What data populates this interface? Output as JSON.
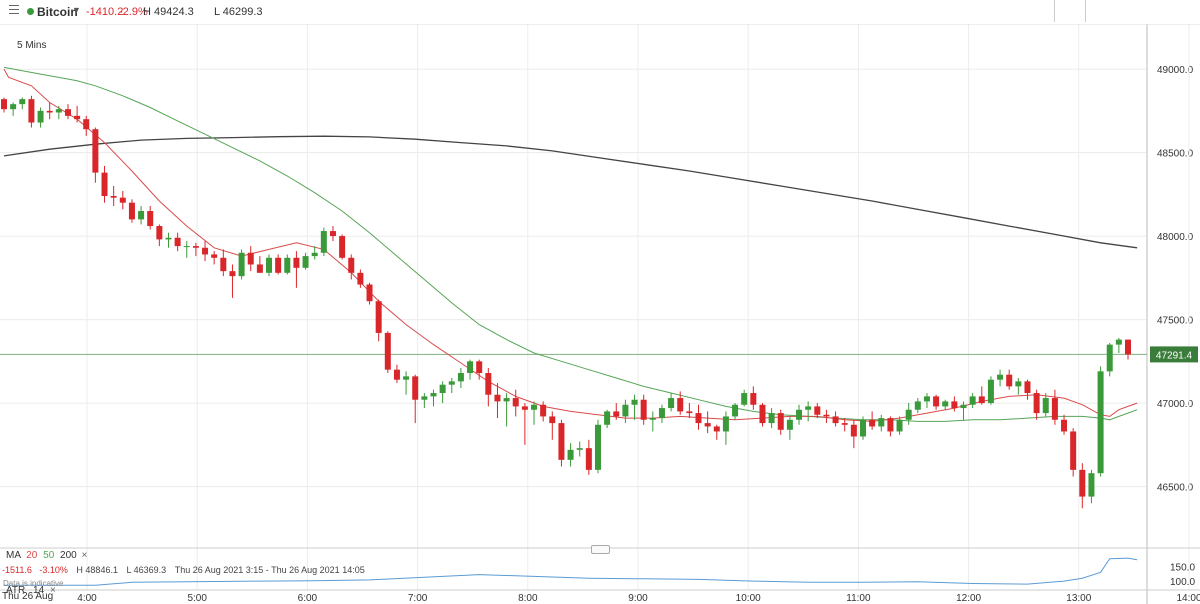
{
  "header": {
    "instrument": "Bitcoin",
    "change": "-1410.2",
    "change_pct": "-2.9%",
    "high": "H 49424.3",
    "low": "L 46299.3",
    "interval": "5 Mins"
  },
  "colors": {
    "up": "#3a9a3a",
    "down": "#d9262a",
    "ma20": "#d94b4b",
    "ma50": "#56a556",
    "ma200": "#444444",
    "atr": "#5b9bd5",
    "change": "#d9262a"
  },
  "legend": {
    "ma_label": "MA",
    "ma20": "20",
    "ma50": "50",
    "ma200": "200",
    "close_icon": "×",
    "stat_change": "-1511.6",
    "stat_pct": "-3.10%",
    "stat_high": "H 48846.1",
    "stat_low": "L 46369.3",
    "stat_range": "Thu 26 Aug 2021 3:15 - Thu 26 Aug 2021 14:05"
  },
  "atr": {
    "label": "ATR",
    "period": "14",
    "close_icon": "×",
    "ticks": [
      "150.0",
      "100.0"
    ],
    "indicative": "Data is indicative"
  },
  "footer": {
    "date": "Thu 26 Aug"
  },
  "chart_data": {
    "type": "candlestick",
    "x_ticks": [
      "4:00",
      "5:00",
      "6:00",
      "7:00",
      "8:00",
      "9:00",
      "10:00",
      "11:00",
      "12:00",
      "13:00",
      "14:00"
    ],
    "y_ticks": [
      "49000.0",
      "48500.0",
      "48000.0",
      "47500.0",
      "47000.0",
      "46500.0"
    ],
    "ylim": [
      46180,
      49270
    ],
    "last_price": "47291.4",
    "last_price_value": 47291.4,
    "candles": [
      [
        48820,
        48830,
        48740,
        48760
      ],
      [
        48760,
        48800,
        48720,
        48790
      ],
      [
        48790,
        48830,
        48760,
        48820
      ],
      [
        48820,
        48840,
        48650,
        48680
      ],
      [
        48680,
        48770,
        48650,
        48750
      ],
      [
        48750,
        48800,
        48700,
        48740
      ],
      [
        48740,
        48780,
        48700,
        48760
      ],
      [
        48760,
        48790,
        48700,
        48720
      ],
      [
        48720,
        48780,
        48680,
        48700
      ],
      [
        48700,
        48720,
        48600,
        48640
      ],
      [
        48640,
        48650,
        48320,
        48380
      ],
      [
        48380,
        48420,
        48200,
        48240
      ],
      [
        48240,
        48300,
        48180,
        48230
      ],
      [
        48230,
        48270,
        48160,
        48200
      ],
      [
        48200,
        48220,
        48080,
        48100
      ],
      [
        48100,
        48180,
        48070,
        48150
      ],
      [
        48150,
        48180,
        48040,
        48060
      ],
      [
        48060,
        48070,
        47940,
        47980
      ],
      [
        47980,
        48020,
        47930,
        47990
      ],
      [
        47990,
        48020,
        47910,
        47940
      ],
      [
        47940,
        47970,
        47870,
        47940
      ],
      [
        47940,
        47960,
        47880,
        47930
      ],
      [
        47930,
        47970,
        47850,
        47890
      ],
      [
        47890,
        47910,
        47830,
        47870
      ],
      [
        47870,
        47920,
        47760,
        47790
      ],
      [
        47790,
        47830,
        47630,
        47760
      ],
      [
        47760,
        47920,
        47740,
        47900
      ],
      [
        47900,
        47940,
        47790,
        47830
      ],
      [
        47830,
        47880,
        47780,
        47780
      ],
      [
        47780,
        47890,
        47760,
        47870
      ],
      [
        47870,
        47890,
        47770,
        47780
      ],
      [
        47780,
        47890,
        47770,
        47870
      ],
      [
        47870,
        47910,
        47690,
        47810
      ],
      [
        47810,
        47900,
        47800,
        47880
      ],
      [
        47880,
        47940,
        47860,
        47900
      ],
      [
        47900,
        48050,
        47880,
        48030
      ],
      [
        48030,
        48060,
        47970,
        48000
      ],
      [
        48000,
        48010,
        47860,
        47870
      ],
      [
        47870,
        47890,
        47740,
        47780
      ],
      [
        47780,
        47800,
        47690,
        47710
      ],
      [
        47710,
        47720,
        47590,
        47610
      ],
      [
        47610,
        47620,
        47370,
        47420
      ],
      [
        47420,
        47430,
        47180,
        47200
      ],
      [
        47200,
        47230,
        47120,
        47140
      ],
      [
        47140,
        47190,
        47050,
        47160
      ],
      [
        47160,
        47170,
        46880,
        47020
      ],
      [
        47020,
        47060,
        46970,
        47040
      ],
      [
        47040,
        47080,
        46980,
        47060
      ],
      [
        47060,
        47130,
        47000,
        47110
      ],
      [
        47110,
        47150,
        47060,
        47130
      ],
      [
        47130,
        47210,
        47090,
        47180
      ],
      [
        47180,
        47260,
        47140,
        47250
      ],
      [
        47250,
        47260,
        47140,
        47180
      ],
      [
        47180,
        47210,
        46980,
        47050
      ],
      [
        47050,
        47120,
        46910,
        47010
      ],
      [
        47010,
        47060,
        46860,
        47030
      ],
      [
        47030,
        47080,
        46920,
        46980
      ],
      [
        46980,
        47000,
        46750,
        46960
      ],
      [
        46960,
        47010,
        46870,
        46990
      ],
      [
        46990,
        47010,
        46890,
        46920
      ],
      [
        46920,
        46950,
        46780,
        46880
      ],
      [
        46880,
        46900,
        46620,
        46660
      ],
      [
        46660,
        46760,
        46620,
        46720
      ],
      [
        46720,
        46770,
        46680,
        46730
      ],
      [
        46730,
        46780,
        46570,
        46600
      ],
      [
        46600,
        46900,
        46580,
        46870
      ],
      [
        46870,
        46960,
        46850,
        46950
      ],
      [
        46950,
        47000,
        46900,
        46920
      ],
      [
        46920,
        47020,
        46880,
        46990
      ],
      [
        46990,
        47050,
        46900,
        47020
      ],
      [
        47020,
        47050,
        46870,
        46900
      ],
      [
        46900,
        46950,
        46830,
        46910
      ],
      [
        46910,
        46990,
        46880,
        46970
      ],
      [
        46970,
        47060,
        46950,
        47030
      ],
      [
        47030,
        47070,
        46930,
        46950
      ],
      [
        46950,
        47000,
        46910,
        46940
      ],
      [
        46940,
        46990,
        46840,
        46880
      ],
      [
        46880,
        46950,
        46820,
        46860
      ],
      [
        46860,
        46870,
        46780,
        46830
      ],
      [
        46830,
        46950,
        46750,
        46920
      ],
      [
        46920,
        47000,
        46900,
        46990
      ],
      [
        46990,
        47080,
        46980,
        47060
      ],
      [
        47060,
        47100,
        46960,
        46990
      ],
      [
        46990,
        47000,
        46860,
        46880
      ],
      [
        46880,
        46970,
        46850,
        46940
      ],
      [
        46940,
        46960,
        46810,
        46840
      ],
      [
        46840,
        46920,
        46780,
        46900
      ],
      [
        46900,
        46990,
        46870,
        46960
      ],
      [
        46960,
        47010,
        46890,
        46980
      ],
      [
        46980,
        47000,
        46910,
        46930
      ],
      [
        46930,
        46960,
        46880,
        46920
      ],
      [
        46920,
        46950,
        46860,
        46880
      ],
      [
        46880,
        46910,
        46830,
        46870
      ],
      [
        46870,
        46900,
        46730,
        46800
      ],
      [
        46800,
        46920,
        46780,
        46900
      ],
      [
        46900,
        46950,
        46840,
        46860
      ],
      [
        46860,
        46930,
        46830,
        46910
      ],
      [
        46910,
        46920,
        46800,
        46830
      ],
      [
        46830,
        46920,
        46810,
        46900
      ],
      [
        46900,
        47000,
        46870,
        46960
      ],
      [
        46960,
        47030,
        46940,
        47010
      ],
      [
        47010,
        47060,
        46970,
        47040
      ],
      [
        47040,
        47050,
        46960,
        46980
      ],
      [
        46980,
        47020,
        46960,
        47010
      ],
      [
        47010,
        47040,
        46950,
        46970
      ],
      [
        46970,
        47010,
        46900,
        46990
      ],
      [
        46990,
        47060,
        46970,
        47040
      ],
      [
        47040,
        47100,
        46990,
        47000
      ],
      [
        47000,
        47160,
        46990,
        47140
      ],
      [
        47140,
        47200,
        47100,
        47170
      ],
      [
        47170,
        47200,
        47080,
        47100
      ],
      [
        47100,
        47150,
        47050,
        47130
      ],
      [
        47130,
        47140,
        47020,
        47060
      ],
      [
        47060,
        47080,
        46900,
        46940
      ],
      [
        46940,
        47060,
        46920,
        47030
      ],
      [
        47030,
        47080,
        46870,
        46900
      ],
      [
        46900,
        46930,
        46810,
        46830
      ],
      [
        46830,
        46850,
        46560,
        46600
      ],
      [
        46600,
        46640,
        46370,
        46440
      ],
      [
        46440,
        46600,
        46400,
        46580
      ],
      [
        46580,
        47220,
        46560,
        47190
      ],
      [
        47190,
        47360,
        47160,
        47350
      ],
      [
        47350,
        47390,
        47300,
        47380
      ],
      [
        47380,
        47380,
        47260,
        47291
      ]
    ],
    "ma20": [
      [
        0,
        49000
      ],
      [
        0.5,
        48950
      ],
      [
        3,
        48900
      ],
      [
        5,
        48800
      ],
      [
        8,
        48700
      ],
      [
        11,
        48560
      ],
      [
        14,
        48390
      ],
      [
        17,
        48210
      ],
      [
        20,
        48060
      ],
      [
        23,
        47930
      ],
      [
        26,
        47880
      ],
      [
        29,
        47920
      ],
      [
        32,
        47960
      ],
      [
        35,
        47920
      ],
      [
        38,
        47780
      ],
      [
        41,
        47610
      ],
      [
        44,
        47470
      ],
      [
        47,
        47350
      ],
      [
        50,
        47240
      ],
      [
        53,
        47130
      ],
      [
        56,
        47040
      ],
      [
        59,
        46980
      ],
      [
        62,
        46950
      ],
      [
        65,
        46930
      ],
      [
        68,
        46910
      ],
      [
        71,
        46910
      ],
      [
        74,
        46920
      ],
      [
        77,
        46910
      ],
      [
        80,
        46900
      ],
      [
        83,
        46910
      ],
      [
        86,
        46920
      ],
      [
        89,
        46920
      ],
      [
        92,
        46900
      ],
      [
        95,
        46890
      ],
      [
        98,
        46910
      ],
      [
        101,
        46940
      ],
      [
        104,
        46970
      ],
      [
        107,
        47010
      ],
      [
        110,
        47040
      ],
      [
        113,
        47050
      ],
      [
        116,
        47030
      ],
      [
        118,
        46990
      ],
      [
        120,
        46930
      ],
      [
        121,
        46920
      ],
      [
        122,
        46960
      ],
      [
        123,
        46980
      ],
      [
        124,
        47000
      ]
    ],
    "ma50": [
      [
        0,
        49010
      ],
      [
        2,
        48990
      ],
      [
        4,
        48970
      ],
      [
        6,
        48950
      ],
      [
        8,
        48930
      ],
      [
        10,
        48900
      ],
      [
        13,
        48840
      ],
      [
        16,
        48770
      ],
      [
        19,
        48690
      ],
      [
        22,
        48610
      ],
      [
        25,
        48530
      ],
      [
        28,
        48450
      ],
      [
        31,
        48360
      ],
      [
        34,
        48260
      ],
      [
        37,
        48150
      ],
      [
        40,
        48020
      ],
      [
        43,
        47880
      ],
      [
        46,
        47740
      ],
      [
        49,
        47600
      ],
      [
        52,
        47470
      ],
      [
        55,
        47380
      ],
      [
        58,
        47300
      ],
      [
        61,
        47250
      ],
      [
        64,
        47200
      ],
      [
        67,
        47150
      ],
      [
        70,
        47100
      ],
      [
        73,
        47060
      ],
      [
        76,
        47020
      ],
      [
        79,
        46980
      ],
      [
        82,
        46950
      ],
      [
        85,
        46930
      ],
      [
        88,
        46920
      ],
      [
        91,
        46910
      ],
      [
        94,
        46900
      ],
      [
        97,
        46900
      ],
      [
        100,
        46890
      ],
      [
        103,
        46890
      ],
      [
        106,
        46900
      ],
      [
        109,
        46900
      ],
      [
        112,
        46910
      ],
      [
        115,
        46920
      ],
      [
        118,
        46920
      ],
      [
        120,
        46910
      ],
      [
        121,
        46900
      ],
      [
        122,
        46920
      ],
      [
        123,
        46940
      ],
      [
        124,
        46960
      ]
    ],
    "ma200": [
      [
        0,
        48480
      ],
      [
        5,
        48520
      ],
      [
        10,
        48550
      ],
      [
        15,
        48575
      ],
      [
        20,
        48585
      ],
      [
        25,
        48590
      ],
      [
        30,
        48595
      ],
      [
        35,
        48598
      ],
      [
        40,
        48594
      ],
      [
        45,
        48580
      ],
      [
        50,
        48560
      ],
      [
        55,
        48540
      ],
      [
        60,
        48510
      ],
      [
        65,
        48470
      ],
      [
        70,
        48430
      ],
      [
        75,
        48390
      ],
      [
        80,
        48345
      ],
      [
        85,
        48300
      ],
      [
        90,
        48255
      ],
      [
        95,
        48210
      ],
      [
        100,
        48160
      ],
      [
        105,
        48110
      ],
      [
        110,
        48060
      ],
      [
        115,
        48010
      ],
      [
        120,
        47960
      ],
      [
        124,
        47930
      ]
    ],
    "atr": {
      "ylim": [
        70,
        185
      ],
      "values": [
        [
          0,
          86
        ],
        [
          10,
          86
        ],
        [
          14,
          96
        ],
        [
          20,
          98
        ],
        [
          28,
          100
        ],
        [
          34,
          101
        ],
        [
          40,
          104
        ],
        [
          46,
          113
        ],
        [
          52,
          122
        ],
        [
          58,
          116
        ],
        [
          64,
          110
        ],
        [
          70,
          108
        ],
        [
          76,
          106
        ],
        [
          82,
          100
        ],
        [
          88,
          96
        ],
        [
          94,
          96
        ],
        [
          100,
          98
        ],
        [
          106,
          92
        ],
        [
          112,
          90
        ],
        [
          116,
          100
        ],
        [
          118,
          110
        ],
        [
          120,
          130
        ],
        [
          121,
          176
        ],
        [
          123,
          178
        ],
        [
          124,
          172
        ]
      ]
    }
  }
}
